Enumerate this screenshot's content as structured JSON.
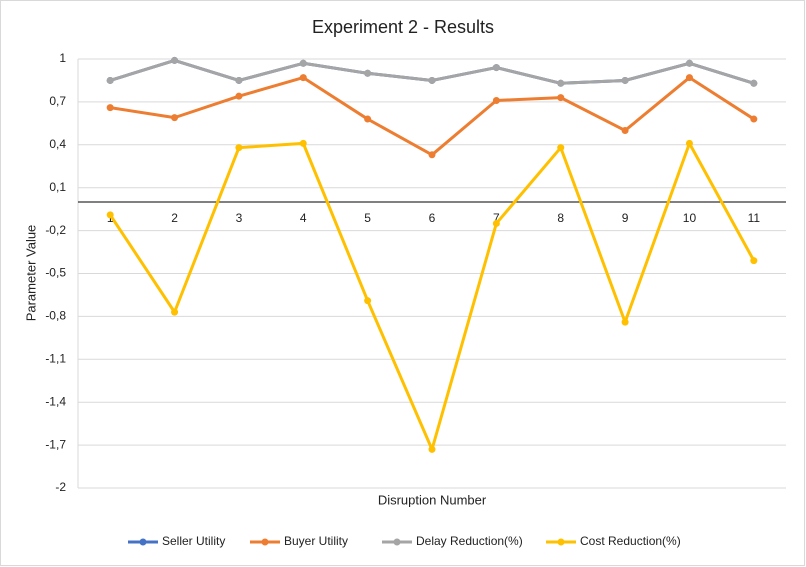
{
  "chart_data": {
    "type": "line",
    "title": "Experiment 2 - Results",
    "x_label": "Disruption Number",
    "y_label": "Parameter Value",
    "categories": [
      "1",
      "2",
      "3",
      "4",
      "5",
      "6",
      "7",
      "8",
      "9",
      "10",
      "11"
    ],
    "series": [
      {
        "name": "Seller Utility",
        "color": "#4472c4",
        "values": [
          0.85,
          0.99,
          0.85,
          0.97,
          0.9,
          0.85,
          0.94,
          0.83,
          0.85,
          0.97,
          0.83
        ]
      },
      {
        "name": "Buyer Utility",
        "color": "#ed7d31",
        "values": [
          0.66,
          0.59,
          0.74,
          0.87,
          0.58,
          0.33,
          0.71,
          0.73,
          0.5,
          0.87,
          0.58
        ]
      },
      {
        "name": "Delay Reduction(%)",
        "color": "#a5a5a5",
        "values": [
          0.85,
          0.99,
          0.85,
          0.97,
          0.9,
          0.85,
          0.94,
          0.83,
          0.85,
          0.97,
          0.83
        ]
      },
      {
        "name": "Cost Reduction(%)",
        "color": "#ffc000",
        "values": [
          -0.09,
          -0.77,
          0.38,
          0.41,
          -0.69,
          -1.73,
          -0.15,
          0.38,
          -0.84,
          0.41,
          -0.41
        ]
      }
    ],
    "ylim": [
      -2,
      1
    ],
    "yticks": [
      {
        "value": 1,
        "label": "1"
      },
      {
        "value": 0.7,
        "label": "0,7"
      },
      {
        "value": 0.4,
        "label": "0,4"
      },
      {
        "value": 0.1,
        "label": "0,1"
      },
      {
        "value": -0.2,
        "label": "-0,2"
      },
      {
        "value": -0.5,
        "label": "-0,5"
      },
      {
        "value": -0.8,
        "label": "-0,8"
      },
      {
        "value": -1.1,
        "label": "-1,1"
      },
      {
        "value": -1.4,
        "label": "-1,4"
      },
      {
        "value": -1.7,
        "label": "-1,7"
      },
      {
        "value": -2,
        "label": "-2"
      }
    ],
    "grid": true,
    "legend": "bottom"
  }
}
